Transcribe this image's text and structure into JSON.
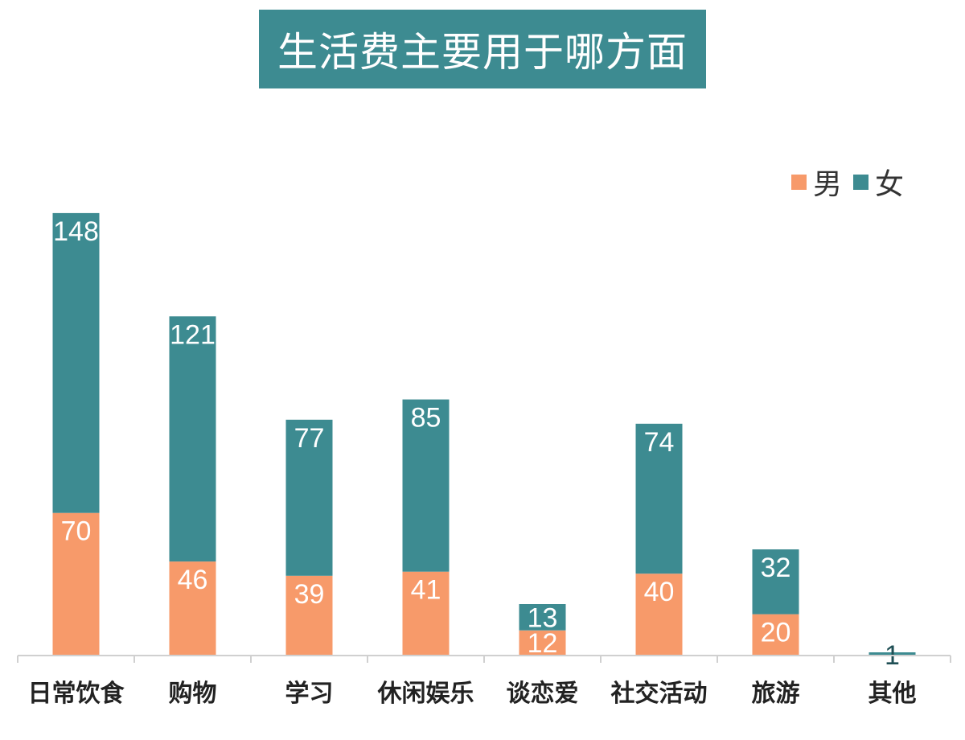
{
  "chart_data": {
    "type": "bar",
    "stacked": true,
    "title": "生活费主要用于哪方面",
    "categories": [
      "日常饮食",
      "购物",
      "学习",
      "休闲娱乐",
      "谈恋爱",
      "社交活动",
      "旅游",
      "其他"
    ],
    "series": [
      {
        "name": "男",
        "color": "#f79a6a",
        "values": [
          70,
          46,
          39,
          41,
          12,
          40,
          20,
          0
        ]
      },
      {
        "name": "女",
        "color": "#3d8b91",
        "values": [
          148,
          121,
          77,
          85,
          13,
          74,
          32,
          1
        ]
      }
    ],
    "legend": {
      "position": "top-right"
    },
    "ylim": [
      0,
      218
    ],
    "grid": false,
    "data_labels": true
  }
}
